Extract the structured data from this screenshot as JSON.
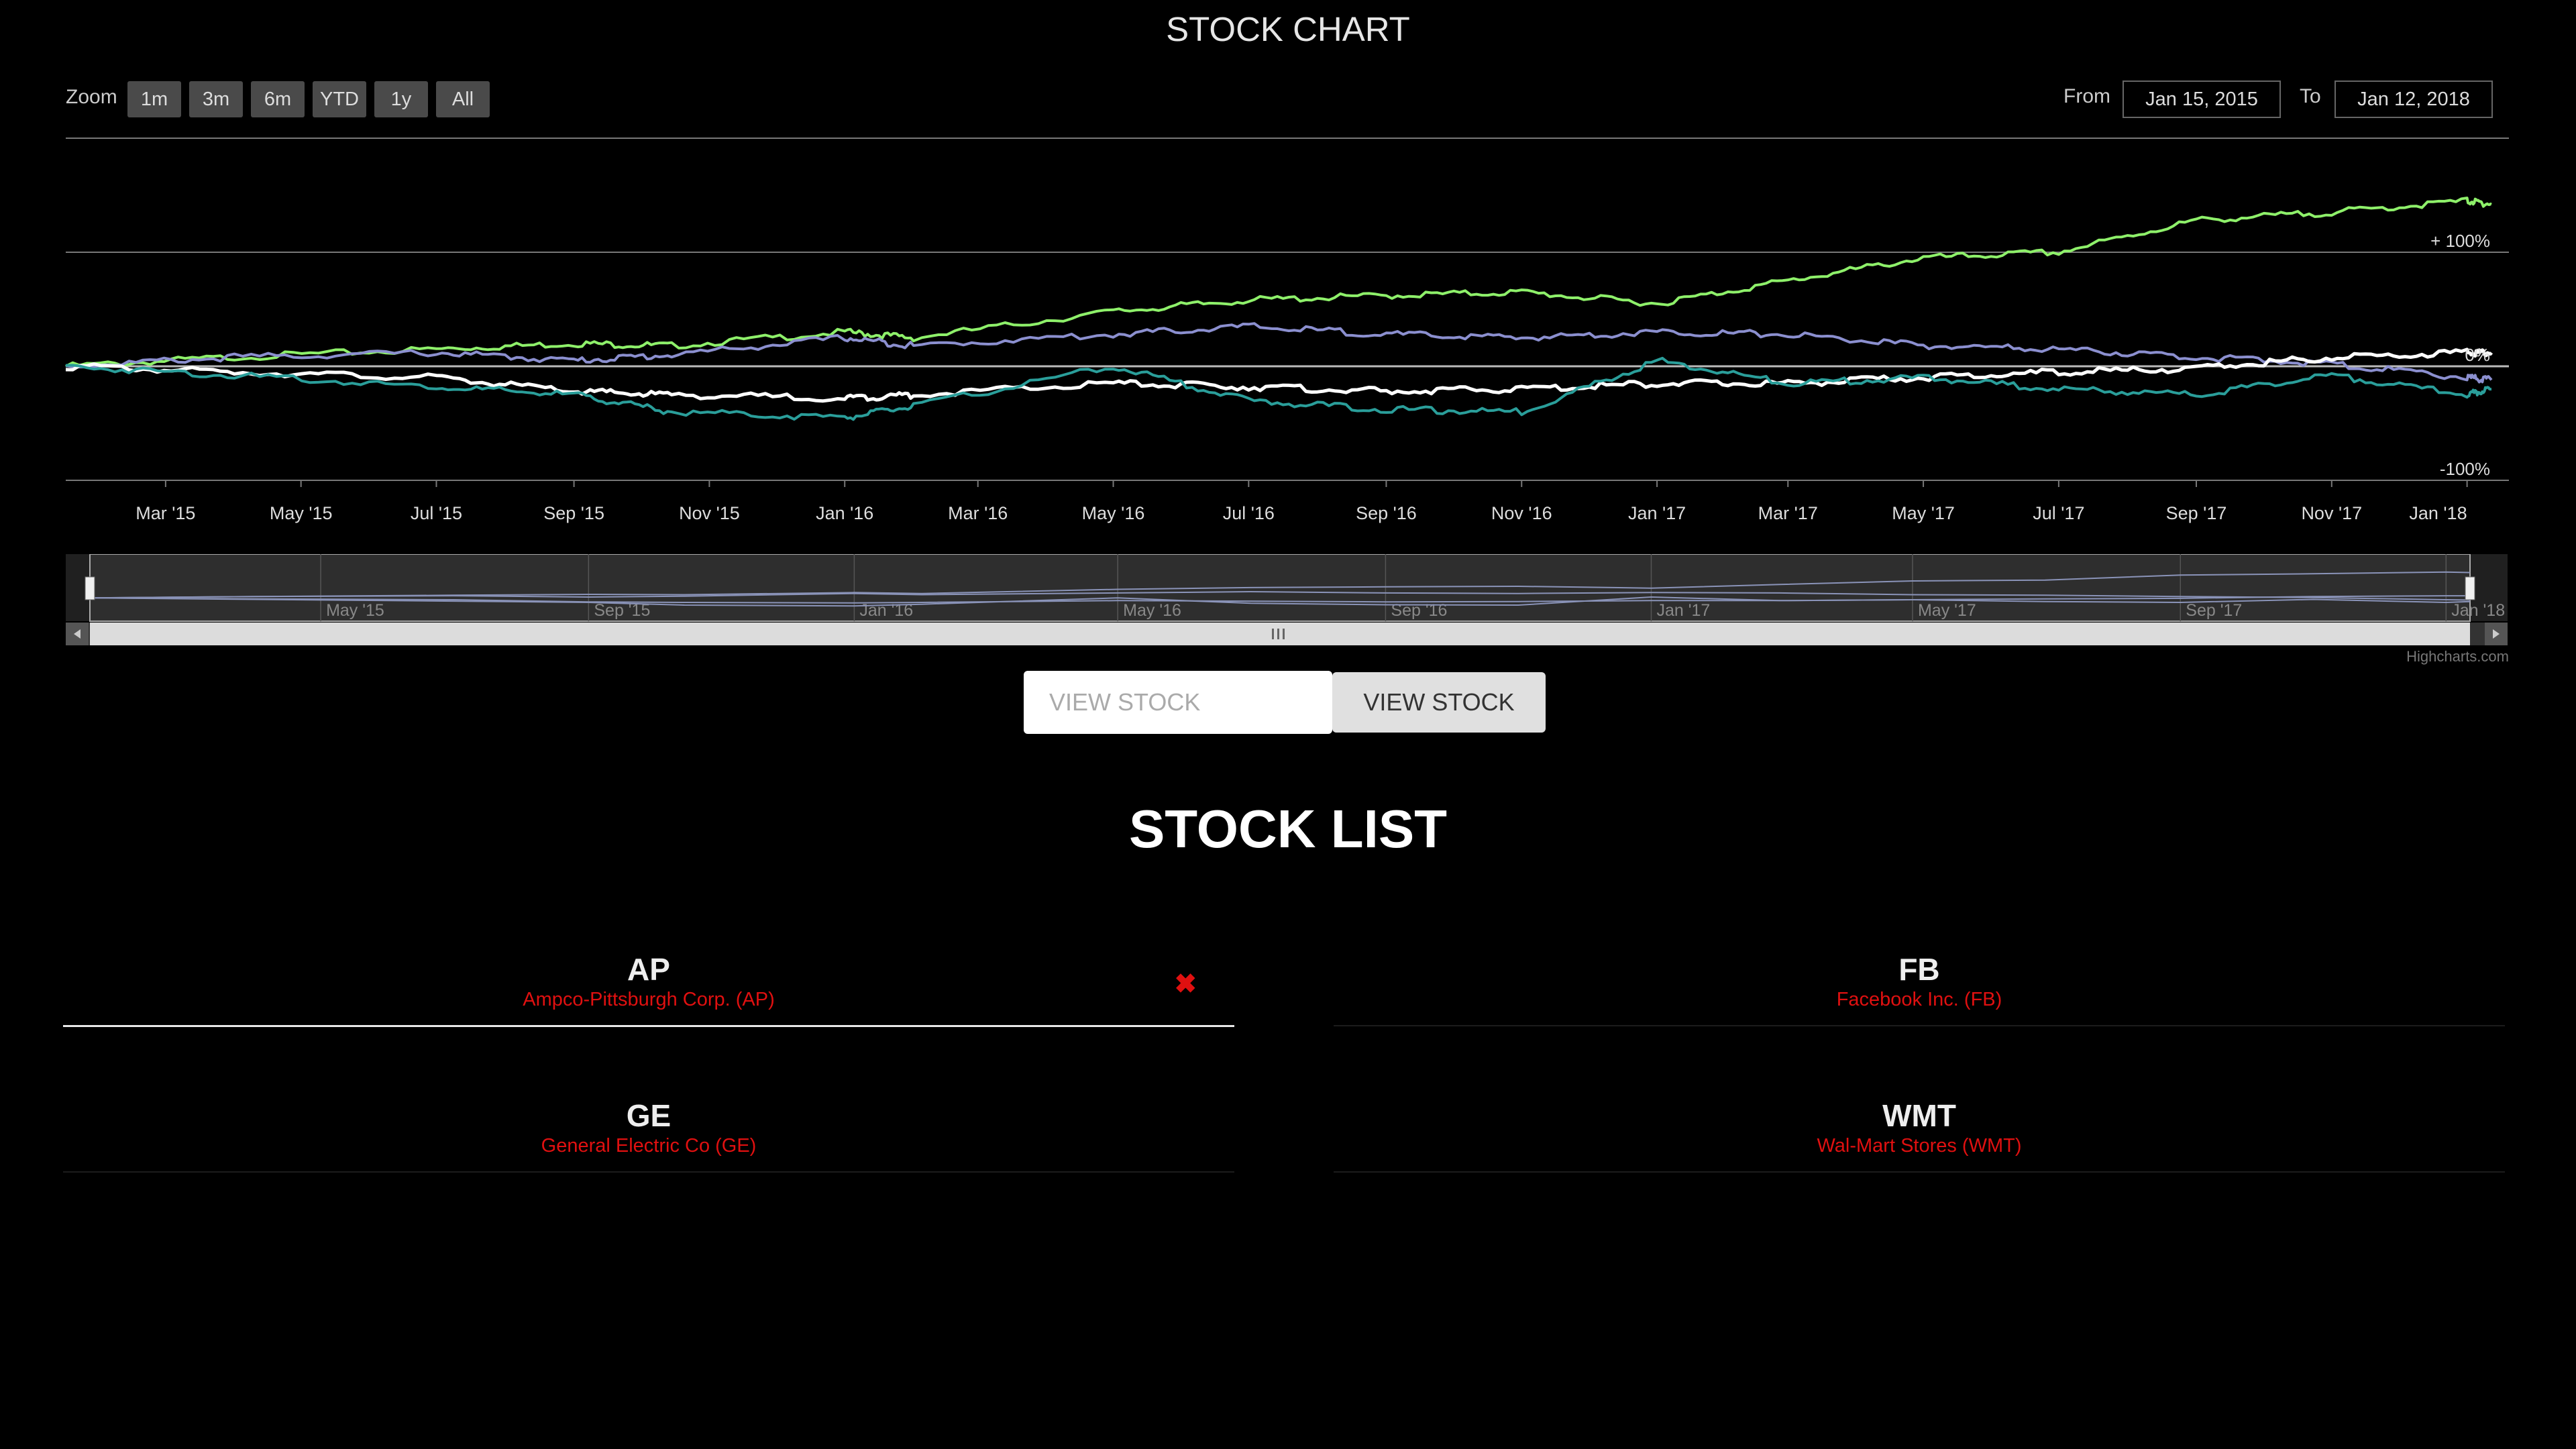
{
  "chart": {
    "title": "STOCK CHART",
    "zoom_label": "Zoom",
    "zoom_buttons": [
      "1m",
      "3m",
      "6m",
      "YTD",
      "1y",
      "All"
    ],
    "from_label": "From",
    "from_value": "Jan 15, 2015",
    "to_label": "To",
    "to_value": "Jan 12, 2018",
    "credit": "Highcharts.com"
  },
  "chart_data": {
    "type": "line",
    "xlabel": "",
    "ylabel": "",
    "x_ticks": [
      "Mar '15",
      "May '15",
      "Jul '15",
      "Sep '15",
      "Nov '15",
      "Jan '16",
      "Mar '16",
      "May '16",
      "Jul '16",
      "Sep '16",
      "Nov '16",
      "Jan '17",
      "Mar '17",
      "May '17",
      "Jul '17",
      "Sep '17",
      "Nov '17",
      "Jan '18"
    ],
    "y_ticks": [
      "-100%",
      "0%",
      "+ 100%"
    ],
    "ylim": [
      -100,
      200
    ],
    "x_range": [
      "2015-01-15",
      "2018-01-12"
    ],
    "navigator_ticks": [
      "May '15",
      "Sep '15",
      "Jan '16",
      "May '16",
      "Sep '16",
      "Jan '17",
      "May '17",
      "Sep '17",
      "Jan '18"
    ],
    "series": [
      {
        "color": "#8ef06a",
        "x": [
          "2015-01-15",
          "2015-04-01",
          "2015-07-01",
          "2015-09-01",
          "2015-10-15",
          "2016-01-01",
          "2016-02-01",
          "2016-05-01",
          "2016-07-01",
          "2016-09-01",
          "2016-11-01",
          "2017-01-01",
          "2017-03-01",
          "2017-05-01",
          "2017-07-01",
          "2017-09-01",
          "2017-11-01",
          "2018-01-01",
          "2018-01-12"
        ],
        "values": [
          0,
          8,
          15,
          20,
          18,
          30,
          25,
          48,
          58,
          62,
          65,
          55,
          75,
          95,
          100,
          128,
          135,
          145,
          142
        ]
      },
      {
        "color": "#8b8fcf",
        "x": [
          "2015-01-15",
          "2015-04-01",
          "2015-07-01",
          "2015-09-01",
          "2015-10-15",
          "2016-01-01",
          "2016-02-01",
          "2016-05-01",
          "2016-07-01",
          "2016-09-01",
          "2016-11-01",
          "2017-01-01",
          "2017-03-01",
          "2017-05-01",
          "2017-07-01",
          "2017-09-01",
          "2017-11-01",
          "2018-01-01",
          "2018-01-12"
        ],
        "values": [
          0,
          8,
          12,
          5,
          10,
          25,
          18,
          28,
          35,
          28,
          25,
          30,
          28,
          18,
          15,
          8,
          2,
          -10,
          -12
        ]
      },
      {
        "color": "#ffffff",
        "x": [
          "2015-01-15",
          "2015-04-01",
          "2015-07-01",
          "2015-09-01",
          "2015-10-15",
          "2016-01-01",
          "2016-02-01",
          "2016-05-01",
          "2016-07-01",
          "2016-09-01",
          "2016-11-01",
          "2017-01-01",
          "2017-03-01",
          "2017-05-01",
          "2017-07-01",
          "2017-09-01",
          "2017-11-01",
          "2018-01-01",
          "2018-01-12"
        ],
        "values": [
          0,
          -5,
          -10,
          -22,
          -25,
          -28,
          -25,
          -15,
          -18,
          -22,
          -20,
          -15,
          -15,
          -10,
          -5,
          -2,
          8,
          12,
          12
        ]
      },
      {
        "color": "#2a9e9a",
        "x": [
          "2015-01-15",
          "2015-04-01",
          "2015-07-01",
          "2015-09-01",
          "2015-10-15",
          "2016-01-01",
          "2016-02-01",
          "2016-05-01",
          "2016-07-01",
          "2016-09-01",
          "2016-11-01",
          "2017-01-01",
          "2017-03-01",
          "2017-05-01",
          "2017-07-01",
          "2017-09-01",
          "2017-11-01",
          "2018-01-01",
          "2018-01-12"
        ],
        "values": [
          0,
          -8,
          -18,
          -25,
          -40,
          -45,
          -35,
          0,
          -30,
          -38,
          -40,
          5,
          -15,
          -10,
          -20,
          -25,
          -8,
          -25,
          -20
        ]
      }
    ]
  },
  "search": {
    "placeholder": "VIEW STOCK",
    "button_label": "VIEW STOCK"
  },
  "stock_list": {
    "title": "STOCK LIST",
    "items": [
      {
        "symbol": "AP",
        "name": "Ampco-Pittsburgh Corp. (AP)",
        "remove": "✖"
      },
      {
        "symbol": "FB",
        "name": "Facebook Inc. (FB)"
      },
      {
        "symbol": "GE",
        "name": "General Electric Co (GE)"
      },
      {
        "symbol": "WMT",
        "name": "Wal-Mart Stores (WMT)"
      }
    ]
  },
  "colors": {
    "background": "#000000",
    "accent_red": "#e01010",
    "grid": "#777777"
  }
}
